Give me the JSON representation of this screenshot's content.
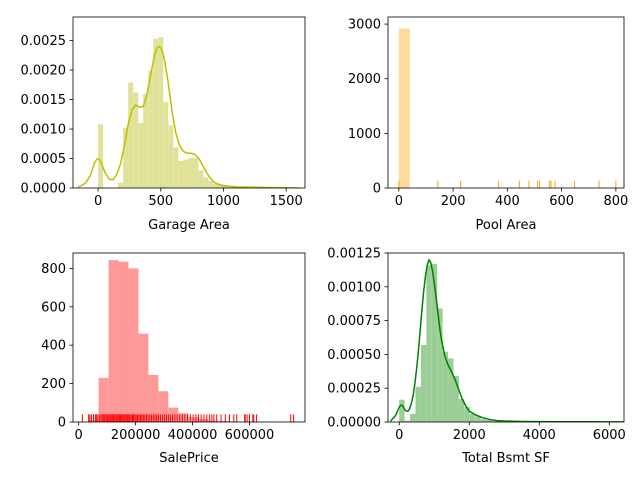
{
  "figure": {
    "background": "#ffffff"
  },
  "chart_data": [
    {
      "id": "garage",
      "type": "histogram",
      "xlabel": "Garage Area",
      "ylabel": "",
      "xlim": [
        -200,
        1650
      ],
      "ylim": [
        0,
        0.0029
      ],
      "xticks": [
        0,
        500,
        1000,
        1500
      ],
      "xtick_labels": [
        "0",
        "500",
        "1000",
        "1500"
      ],
      "yticks": [
        0,
        0.0005,
        0.001,
        0.0015,
        0.002,
        0.0025
      ],
      "ytick_labels": [
        "0.0000",
        "0.0005",
        "0.0010",
        "0.0015",
        "0.0020",
        "0.0025"
      ],
      "bar_color": "#e1e29a",
      "line_color": "#bfbf00",
      "bin_edges": [
        0,
        40,
        80,
        120,
        160,
        200,
        240,
        280,
        320,
        360,
        400,
        440,
        480,
        520,
        560,
        600,
        640,
        680,
        720,
        760,
        800,
        840,
        880,
        920,
        960,
        1000,
        1040,
        1080,
        1120,
        1160,
        1200,
        1240,
        1280,
        1320,
        1360,
        1400,
        1440,
        1480,
        1520,
        1560,
        1600,
        1640
      ],
      "values": [
        0.00108,
        0,
        0,
        0,
        9e-05,
        0.00102,
        0.00179,
        0.00162,
        0.0011,
        0.0016,
        0.00199,
        0.00253,
        0.00256,
        0.00146,
        0.00106,
        0.00069,
        0.00046,
        0.00048,
        0.00051,
        0.00051,
        0.0003,
        0.00018,
        0.00012,
        8e-05,
        5e-05,
        4e-05,
        3e-05,
        3e-05,
        2e-05,
        2e-05,
        1.5e-05,
        1e-05,
        1e-05,
        5e-06,
        5e-06,
        5e-06,
        3e-06,
        3e-06,
        2e-06,
        2e-06,
        2e-06
      ],
      "kde_x": [
        -160,
        -100,
        -60,
        -30,
        -10,
        0,
        10,
        30,
        60,
        90,
        120,
        150,
        180,
        210,
        240,
        270,
        300,
        330,
        360,
        390,
        420,
        450,
        470,
        490,
        510,
        530,
        560,
        590,
        620,
        650,
        680,
        710,
        740,
        770,
        800,
        830,
        860,
        890,
        920,
        950,
        1000,
        1050,
        1100,
        1200,
        1300,
        1400,
        1500,
        1600
      ],
      "kde_y": [
        1e-05,
        8e-05,
        0.00022,
        0.00042,
        0.00049,
        0.0005,
        0.00048,
        0.0004,
        0.00024,
        0.00015,
        0.00014,
        0.00023,
        0.00042,
        0.00072,
        0.00108,
        0.00132,
        0.00141,
        0.00137,
        0.00138,
        0.00158,
        0.00193,
        0.00225,
        0.00238,
        0.0024,
        0.00234,
        0.00217,
        0.00178,
        0.0013,
        0.00093,
        0.00072,
        0.00062,
        0.00059,
        0.00059,
        0.00057,
        0.00051,
        0.0004,
        0.00028,
        0.00018,
        0.00011,
        7e-05,
        4e-05,
        3e-05,
        2e-05,
        1.5e-05,
        1e-05,
        6e-06,
        3e-06,
        1e-06
      ]
    },
    {
      "id": "pool",
      "type": "histogram",
      "xlabel": "Pool Area",
      "ylabel": "",
      "xlim": [
        -40,
        830
      ],
      "ylim": [
        0,
        3130
      ],
      "xticks": [
        0,
        200,
        400,
        600,
        800
      ],
      "xtick_labels": [
        "0",
        "200",
        "400",
        "600",
        "800"
      ],
      "yticks": [
        0,
        1000,
        2000,
        3000
      ],
      "ytick_labels": [
        "0",
        "1000",
        "2000",
        "3000"
      ],
      "bar_color": "#ffd89a",
      "rug_color": "#ffa500",
      "bin_edges": [
        0,
        20,
        40
      ],
      "values": [
        2917,
        2917
      ],
      "rug": [
        0,
        144,
        228,
        368,
        444,
        480,
        512,
        519,
        555,
        561,
        576,
        648,
        738,
        800
      ],
      "rug_height_units": 135
    },
    {
      "id": "saleprice",
      "type": "histogram",
      "xlabel": "SalePrice",
      "ylabel": "",
      "xlim": [
        -20000,
        795000
      ],
      "ylim": [
        0,
        880
      ],
      "xticks": [
        0,
        200000,
        400000,
        600000
      ],
      "xtick_labels": [
        "0",
        "200000",
        "400000",
        "600000"
      ],
      "yticks": [
        0,
        200,
        400,
        600,
        800
      ],
      "ytick_labels": [
        "0",
        "200",
        "400",
        "600",
        "800"
      ],
      "bar_color": "#ff9999",
      "rug_color": "#ff0000",
      "bin_edges": [
        0,
        35000,
        70000,
        105000,
        140000,
        175000,
        210000,
        245000,
        280000,
        315000,
        350000,
        385000,
        420000,
        455000,
        490000,
        525000,
        560000,
        595000,
        630000,
        665000,
        700000,
        735000,
        770000
      ],
      "values": [
        0,
        10,
        230,
        843,
        835,
        800,
        460,
        245,
        160,
        75,
        45,
        25,
        15,
        8,
        6,
        3,
        2,
        2,
        1,
        0,
        0,
        2
      ],
      "rug": [
        12789,
        35000,
        39300,
        45000,
        52000,
        58500,
        62000,
        67000,
        72500,
        78000,
        83000,
        88000,
        92000,
        96500,
        101000,
        105500,
        110000,
        114000,
        118000,
        122000,
        126500,
        131000,
        135000,
        139000,
        143000,
        147000,
        151000,
        155000,
        159000,
        163000,
        167500,
        172000,
        176000,
        180000,
        184500,
        189000,
        193000,
        197500,
        202000,
        207000,
        212000,
        217000,
        222000,
        227000,
        232500,
        238000,
        244000,
        250000,
        256000,
        262000,
        268000,
        274000,
        280000,
        287000,
        294000,
        301000,
        308000,
        315000,
        322000,
        330000,
        338000,
        346000,
        355000,
        364000,
        373000,
        382000,
        392000,
        402000,
        412000,
        421000,
        430000,
        440000,
        450000,
        460000,
        468000,
        475000,
        485000,
        500000,
        515000,
        530000,
        545000,
        555000,
        582933,
        585000,
        591587,
        600000,
        611657,
        615000,
        625000,
        745000,
        755000
      ],
      "rug_height_units": 40
    },
    {
      "id": "bsmt",
      "type": "histogram",
      "xlabel": "Total Bsmt SF",
      "ylabel": "",
      "xlim": [
        -320,
        6420
      ],
      "ylim": [
        0,
        0.00125
      ],
      "xticks": [
        0,
        2000,
        4000,
        6000
      ],
      "xtick_labels": [
        "0",
        "2000",
        "4000",
        "6000"
      ],
      "yticks": [
        0,
        0.00025,
        0.0005,
        0.00075,
        0.001,
        0.00125
      ],
      "ytick_labels": [
        "0.00000",
        "0.00025",
        "0.00050",
        "0.00075",
        "0.00100",
        "0.00125"
      ],
      "bar_color": "#9bce96",
      "line_color": "#008000",
      "bin_edges": [
        0,
        155,
        310,
        465,
        620,
        775,
        930,
        1085,
        1240,
        1395,
        1550,
        1705,
        1860,
        2015,
        2170,
        2325,
        2480,
        2635,
        2790,
        2945,
        3100,
        3255,
        3410
      ],
      "values": [
        0.000165,
        1e-05,
        6e-05,
        0.00026,
        0.00057,
        0.00116,
        0.00117,
        0.00084,
        0.00052,
        0.00047,
        0.00034,
        0.00017,
        0.00011,
        6e-05,
        4e-05,
        2e-05,
        1.5e-05,
        1e-05,
        1e-05,
        5e-06,
        5e-06,
        5e-06
      ],
      "kde_x": [
        -250,
        -100,
        0,
        50,
        100,
        150,
        200,
        250,
        300,
        350,
        400,
        450,
        500,
        550,
        600,
        650,
        700,
        750,
        800,
        850,
        900,
        950,
        1000,
        1050,
        1100,
        1150,
        1200,
        1300,
        1400,
        1500,
        1600,
        1700,
        1800,
        1900,
        2000,
        2200,
        2400,
        2600,
        2800,
        3000,
        3500,
        4000,
        4500,
        5000,
        5500,
        6000,
        6400
      ],
      "kde_y": [
        5e-06,
        5e-05,
        0.00011,
        0.000125,
        0.00012,
        9.5e-05,
        8e-05,
        8e-05,
        0.0001,
        0.00014,
        0.0002,
        0.00029,
        0.0004,
        0.00053,
        0.00068,
        0.00083,
        0.00097,
        0.00108,
        0.00116,
        0.0012,
        0.00118,
        0.00112,
        0.00103,
        0.00093,
        0.00082,
        0.00071,
        0.00062,
        0.00049,
        0.00042,
        0.00037,
        0.00031,
        0.00024,
        0.00017,
        0.00012,
        8e-05,
        5e-05,
        3e-05,
        1.8e-05,
        1e-05,
        7e-06,
        4e-06,
        3e-06,
        2e-06,
        2e-06,
        2e-06,
        1e-06,
        1e-06
      ]
    }
  ]
}
